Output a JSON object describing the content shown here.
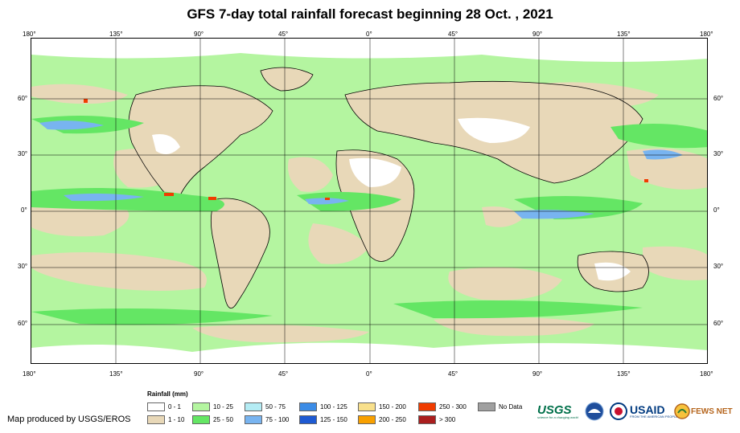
{
  "title": "GFS 7-day total rainfall forecast beginning 28 Oct. , 2021",
  "longitude_labels": [
    "180°",
    "135°",
    "90°",
    "45°",
    "0°",
    "45°",
    "90°",
    "135°",
    "180°"
  ],
  "latitude_labels": [
    "60°",
    "30°",
    "0°",
    "30°",
    "60°"
  ],
  "legend": {
    "title": "Rainfall (mm)",
    "items": [
      {
        "label": "0 - 1",
        "color": "#ffffff"
      },
      {
        "label": "1 - 10",
        "color": "#e8d8b8"
      },
      {
        "label": "10 - 25",
        "color": "#b4f5a0"
      },
      {
        "label": "25 - 50",
        "color": "#64e664"
      },
      {
        "label": "50 - 75",
        "color": "#b4ecf4"
      },
      {
        "label": "75 - 100",
        "color": "#78b4f0"
      },
      {
        "label": "100 - 125",
        "color": "#3c8ce6"
      },
      {
        "label": "125 - 150",
        "color": "#1e5ad2"
      },
      {
        "label": "150 - 200",
        "color": "#f8e08c"
      },
      {
        "label": "200 - 250",
        "color": "#f8a000"
      },
      {
        "label": "250 - 300",
        "color": "#f03c00"
      },
      {
        "label": "> 300",
        "color": "#aa1e1e"
      },
      {
        "label": "No Data",
        "color": "#a0a0a0"
      }
    ]
  },
  "credit": "Map produced by USGS/EROS",
  "logos": {
    "usgs": "USGS",
    "usgs_tagline": "science for a changing world",
    "noaa": "NOAA",
    "usaid": "USAID",
    "usaid_tagline": "FROM THE AMERICAN PEOPLE",
    "fews": "FEWS NET"
  }
}
